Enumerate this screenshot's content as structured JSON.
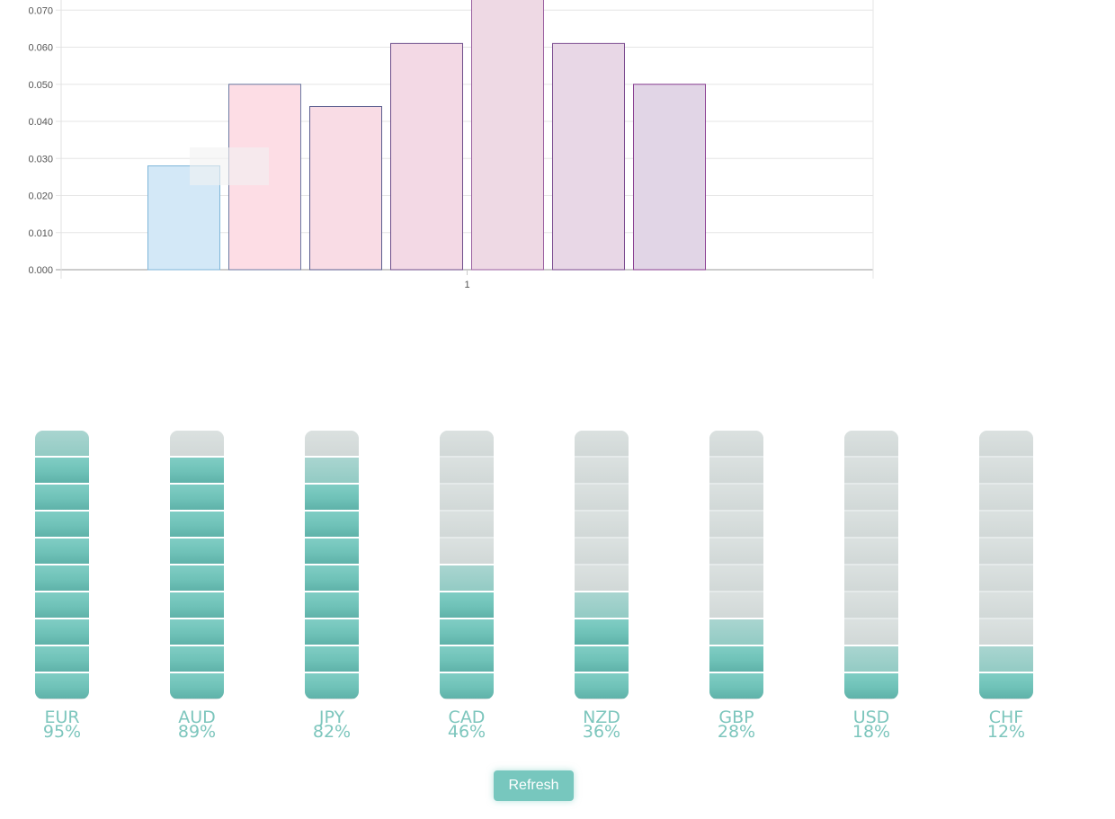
{
  "chart_data": {
    "type": "bar",
    "categories": [
      "1"
    ],
    "ylim": [
      0,
      0.07
    ],
    "yticks": [
      "0.000",
      "0.010",
      "0.020",
      "0.030",
      "0.040",
      "0.050",
      "0.060",
      "0.070"
    ],
    "grid": true,
    "series": [
      {
        "values": [
          0.028
        ],
        "fill": "#d3e8f7",
        "stroke": "#7fb6d9"
      },
      {
        "values": [
          0.05
        ],
        "fill": "#fddde5",
        "stroke": "#6c7aa3"
      },
      {
        "values": [
          0.044
        ],
        "fill": "#f9dce5",
        "stroke": "#5b5e8f"
      },
      {
        "values": [
          0.061
        ],
        "fill": "#f3d9e5",
        "stroke": "#6e4d8a"
      },
      {
        "values": [
          0.075
        ],
        "fill": "#eed9e4",
        "stroke": "#9a5fa0"
      },
      {
        "values": [
          0.061
        ],
        "fill": "#e8d7e6",
        "stroke": "#7b4b8f"
      },
      {
        "values": [
          0.05
        ],
        "fill": "#e1d5e6",
        "stroke": "#8a3f92"
      }
    ]
  },
  "strength_meters": [
    {
      "currency": "EUR",
      "percent_label": "95%",
      "value": 95
    },
    {
      "currency": "AUD",
      "percent_label": "89%",
      "value": 89
    },
    {
      "currency": "JPY",
      "percent_label": "82%",
      "value": 82
    },
    {
      "currency": "CAD",
      "percent_label": "46%",
      "value": 46
    },
    {
      "currency": "NZD",
      "percent_label": "36%",
      "value": 36
    },
    {
      "currency": "GBP",
      "percent_label": "28%",
      "value": 28
    },
    {
      "currency": "USD",
      "percent_label": "18%",
      "value": 18
    },
    {
      "currency": "CHF",
      "percent_label": "12%",
      "value": 12
    }
  ],
  "refresh_label": "Refresh",
  "colors": {
    "meter_active": "#6fc2b8",
    "meter_inactive": "#d5dcdb",
    "meter_label": "#7dc6bd",
    "button": "#77c7be"
  }
}
